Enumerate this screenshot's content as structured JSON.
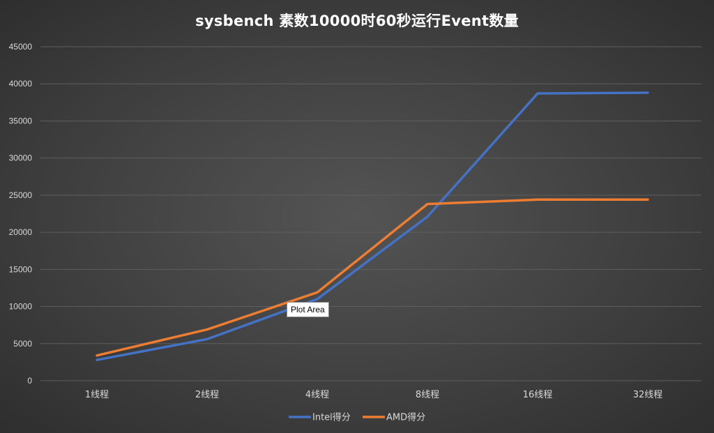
{
  "chart_data": {
    "type": "line",
    "title": "sysbench 素数10000时60秒运行Event数量",
    "categories": [
      "1线程",
      "2线程",
      "4线程",
      "8线程",
      "16线程",
      "32线程"
    ],
    "series": [
      {
        "name": "Intel得分",
        "color": "#4472C4",
        "values": [
          2800,
          5600,
          11000,
          22100,
          38700,
          38800
        ]
      },
      {
        "name": "AMD得分",
        "color": "#ED7D31",
        "values": [
          3400,
          6900,
          11900,
          23800,
          24400,
          24400
        ]
      }
    ],
    "ylim": [
      0,
      45000
    ],
    "yticks": [
      0,
      5000,
      10000,
      15000,
      20000,
      25000,
      30000,
      35000,
      40000,
      45000
    ],
    "grid": true,
    "legend_position": "bottom",
    "xlabel": "",
    "ylabel": ""
  },
  "tooltip": {
    "text": "Plot Area"
  },
  "colors": {
    "gridline": "#5e5e5e",
    "axis_text": "#d9d9d9",
    "title_text": "#ffffff"
  }
}
